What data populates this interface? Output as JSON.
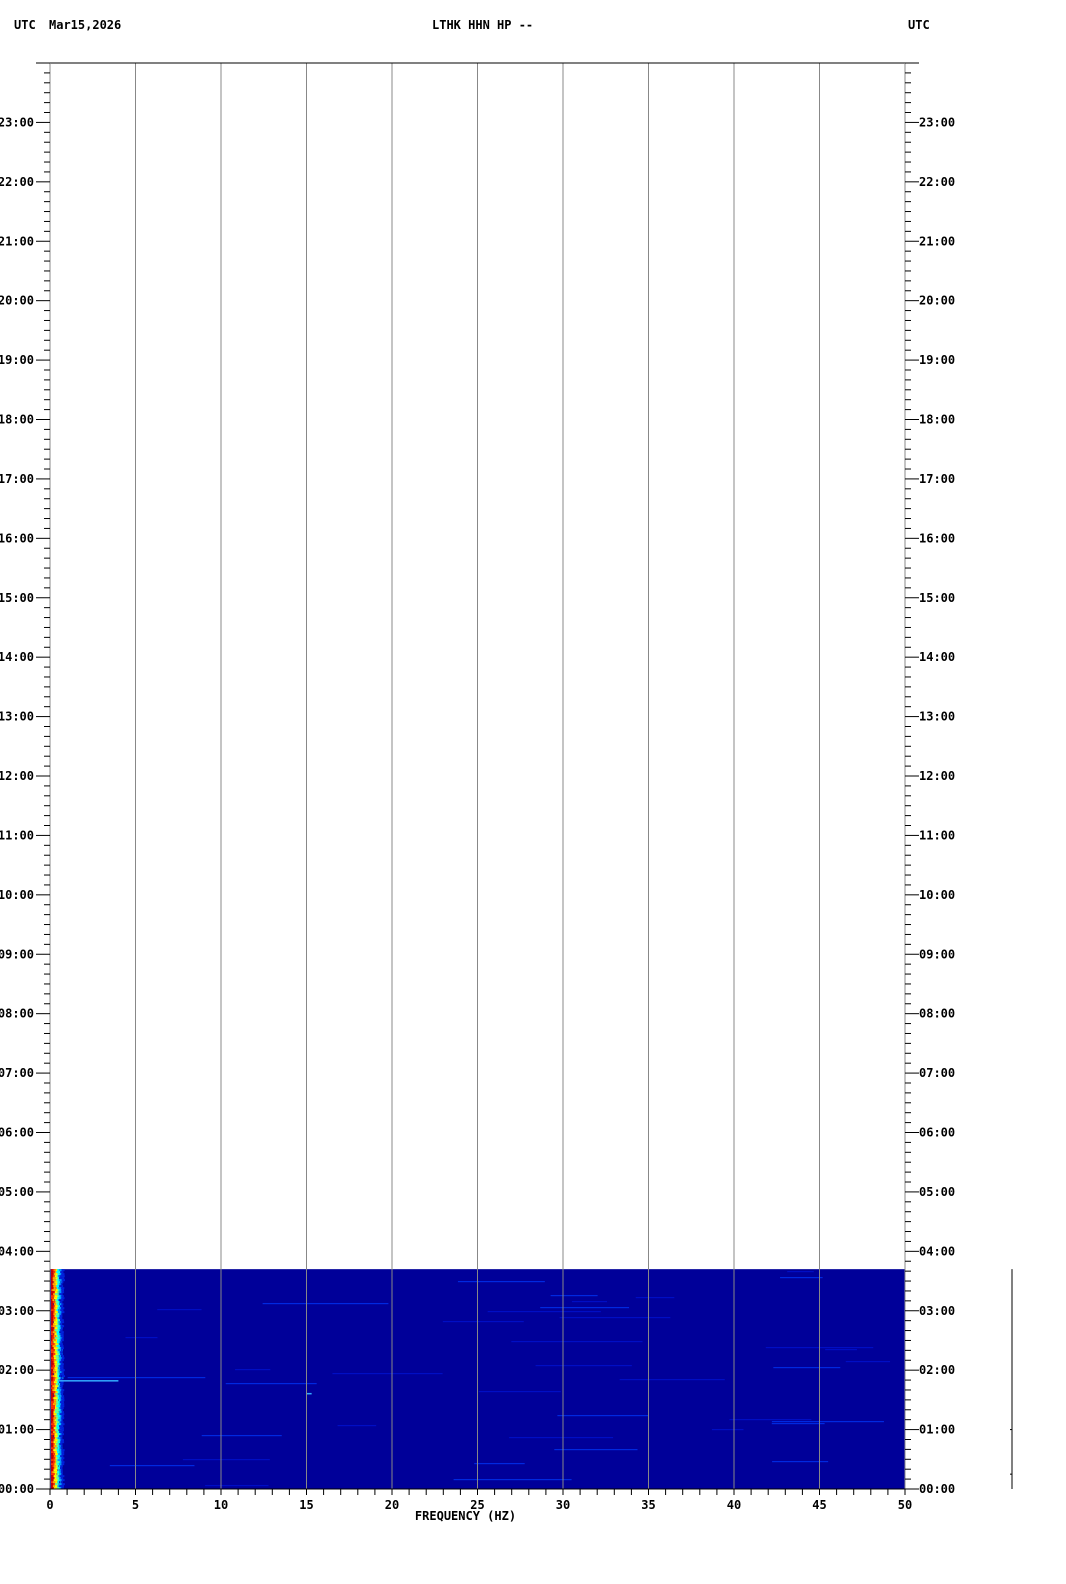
{
  "header": {
    "left_tz": "UTC",
    "date": "Mar15,2026",
    "station": "LTHK HHN HP --",
    "right_tz": "UTC"
  },
  "chart_data": {
    "type": "heatmap",
    "title": "LTHK HHN HP --",
    "xlabel": "FREQUENCY (HZ)",
    "ylabel": "",
    "xlim": [
      0,
      50
    ],
    "x_ticks": [
      "0",
      "5",
      "10",
      "15",
      "20",
      "25",
      "30",
      "35",
      "40",
      "45",
      "50"
    ],
    "x_minor_step": 1,
    "ylim_hours": [
      0,
      24
    ],
    "y_ticks": [
      "00:00",
      "01:00",
      "02:00",
      "03:00",
      "04:00",
      "05:00",
      "06:00",
      "07:00",
      "08:00",
      "09:00",
      "10:00",
      "11:00",
      "12:00",
      "13:00",
      "14:00",
      "15:00",
      "16:00",
      "17:00",
      "18:00",
      "19:00",
      "20:00",
      "21:00",
      "22:00",
      "23:00"
    ],
    "y_minor_step_minutes": 10,
    "data_start": "00:00",
    "data_end": "03:42",
    "dominant_energy_band_hz": [
      0.1,
      0.5
    ],
    "notable_events": [
      {
        "time": "01:50",
        "freq_range_hz": [
          0.5,
          4
        ],
        "note": "horizontal line"
      },
      {
        "time": "01:37",
        "freq_range_hz": [
          15,
          15.3
        ]
      }
    ],
    "colors": {
      "background_level": "#000099",
      "low": "#0022dd",
      "mid": "#00ffff",
      "high": "#ffff00",
      "peak": "#cc0000"
    },
    "grid": true
  }
}
